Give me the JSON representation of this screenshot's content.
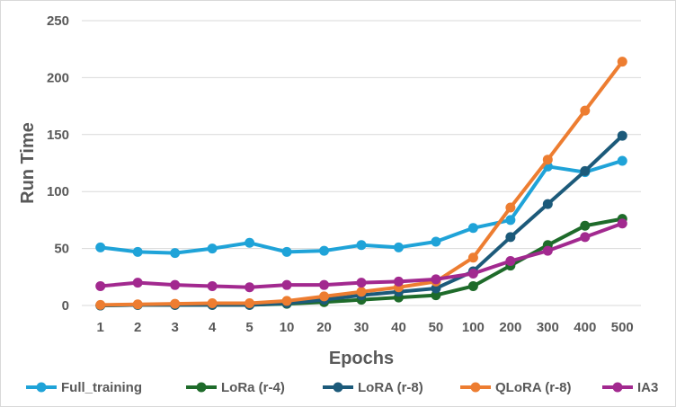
{
  "chart_data": {
    "type": "line",
    "title": "",
    "xlabel": "Epochs",
    "ylabel": "Run Time",
    "ylim": [
      0,
      250
    ],
    "yticks": [
      "0",
      "50",
      "100",
      "150",
      "200",
      "250"
    ],
    "categories": [
      "1",
      "2",
      "3",
      "4",
      "5",
      "10",
      "20",
      "30",
      "40",
      "50",
      "100",
      "200",
      "300",
      "400",
      "500"
    ],
    "grid": true,
    "legend_position": "bottom",
    "series": [
      {
        "name": "Full_training",
        "color": "#1fa3d8",
        "values": [
          51,
          47,
          46,
          50,
          55,
          47,
          48,
          53,
          51,
          56,
          68,
          75,
          122,
          117,
          127
        ]
      },
      {
        "name": "LoRa (r-4)",
        "color": "#1e6b2a",
        "values": [
          0,
          0.5,
          0.5,
          0.5,
          0.5,
          1.5,
          3,
          5,
          7,
          9,
          17,
          35,
          53,
          70,
          76
        ]
      },
      {
        "name": "LoRA (r-8)",
        "color": "#1c5a7a",
        "values": [
          0,
          0.5,
          0.5,
          0.5,
          0.5,
          2,
          5,
          9,
          12,
          15,
          30,
          60,
          89,
          118,
          149
        ]
      },
      {
        "name": "QLoRA (r-8)",
        "color": "#ed7d31",
        "values": [
          0.5,
          1,
          1.5,
          2,
          2,
          4,
          8,
          12,
          16,
          21,
          42,
          86,
          128,
          171,
          214
        ]
      },
      {
        "name": "IA3",
        "color": "#a2298f",
        "values": [
          17,
          20,
          18,
          17,
          16,
          18,
          18,
          20,
          21,
          23,
          28,
          39,
          48,
          60,
          72
        ]
      }
    ]
  }
}
